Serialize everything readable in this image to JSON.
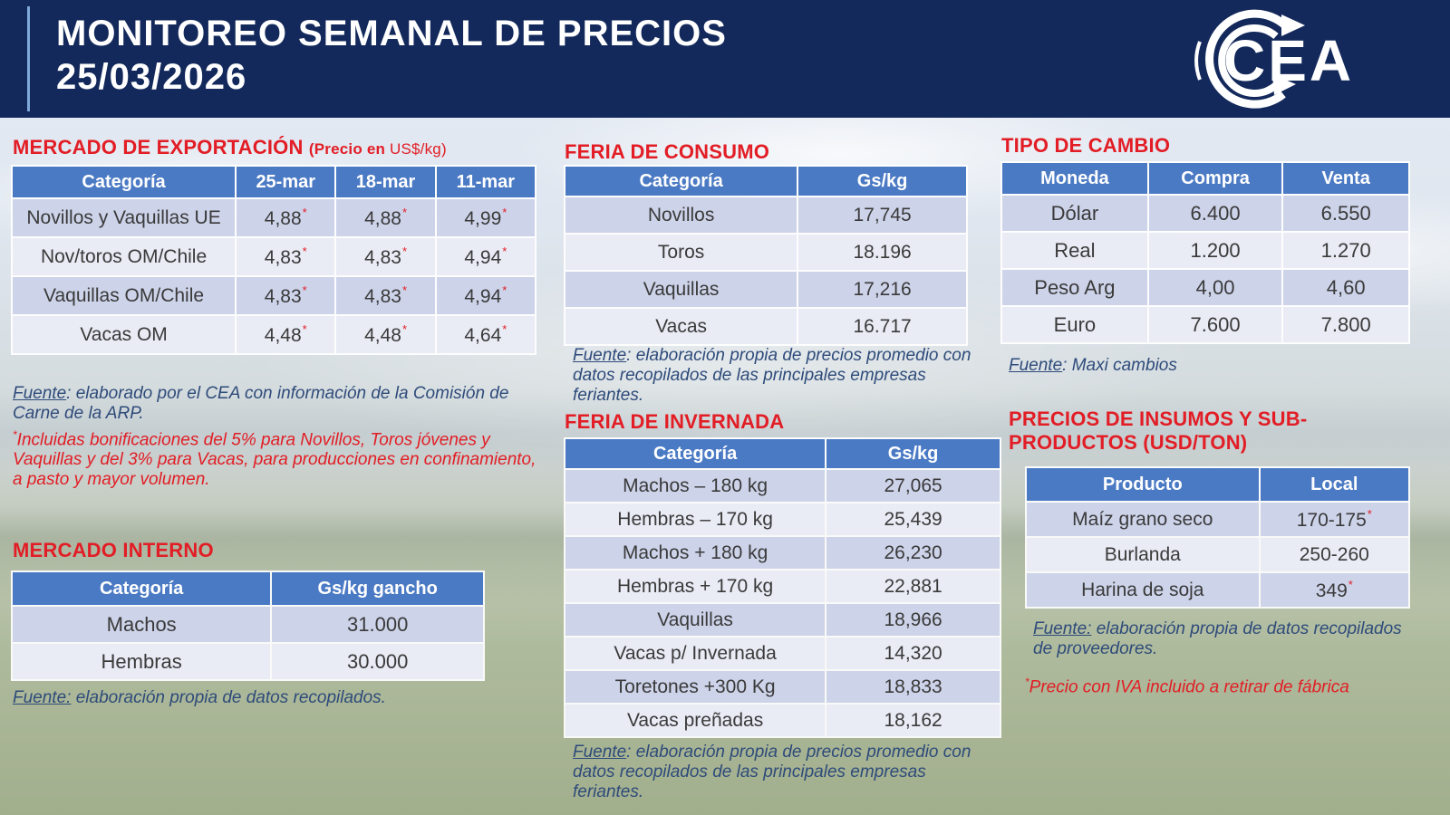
{
  "header": {
    "title": "MONITOREO SEMANAL DE PRECIOS",
    "date": "25/03/2026",
    "logo": "CEA"
  },
  "colors": {
    "banner_navy": "#13295B",
    "accent_light_blue": "#7FA9DB",
    "table_header_blue": "#4B7AC4",
    "row_dark": "#CDD3E9",
    "row_light": "#E9EBF5",
    "title_red": "#E21D25",
    "source_navy": "#2E4B7A"
  },
  "export": {
    "title": "MERCADO DE EXPORTACIÓN",
    "subtitle_strong": "(Precio en",
    "subtitle_rest": " US$/kg)",
    "table": {
      "columns": [
        "Categoría",
        "25-mar",
        "18-mar",
        "11-mar"
      ],
      "rows": [
        {
          "cells": [
            {
              "t": "Novillos y Vaquillas UE"
            },
            {
              "t": "4,88",
              "sup": "*"
            },
            {
              "t": "4,88",
              "sup": "*"
            },
            {
              "t": "4,99",
              "sup": "*"
            }
          ]
        },
        {
          "cells": [
            {
              "t": "Nov/toros OM/Chile"
            },
            {
              "t": "4,83",
              "sup": "*"
            },
            {
              "t": "4,83",
              "sup": "*"
            },
            {
              "t": "4,94",
              "sup": "*"
            }
          ]
        },
        {
          "cells": [
            {
              "t": "Vaquillas OM/Chile"
            },
            {
              "t": "4,83",
              "sup": "*"
            },
            {
              "t": "4,83",
              "sup": "*"
            },
            {
              "t": "4,94",
              "sup": "*"
            }
          ]
        },
        {
          "cells": [
            {
              "t": "Vacas OM"
            },
            {
              "t": "4,48",
              "sup": "*"
            },
            {
              "t": "4,48",
              "sup": "*"
            },
            {
              "t": "4,64",
              "sup": "*"
            }
          ]
        }
      ]
    },
    "fuente_label": "Fuente",
    "fuente_text": ": elaborado por el CEA con información de la Comisión de Carne de la ARP.",
    "note_sup": "*",
    "note_text": "Incluidas bonificaciones del 5% para Novillos, Toros jóvenes y Vaquillas y del 3% para Vacas, para producciones en confinamiento, a pasto y mayor volumen."
  },
  "interno": {
    "title": "MERCADO INTERNO",
    "table": {
      "columns": [
        "Categoría",
        "Gs/kg gancho"
      ],
      "rows": [
        {
          "cells": [
            {
              "t": "Machos"
            },
            {
              "t": "31.000"
            }
          ]
        },
        {
          "cells": [
            {
              "t": "Hembras"
            },
            {
              "t": "30.000"
            }
          ]
        }
      ]
    },
    "fuente_label": "Fuente:",
    "fuente_text": " elaboración propia de datos recopilados."
  },
  "consumo": {
    "title": "FERIA DE CONSUMO",
    "table": {
      "columns": [
        "Categoría",
        "Gs/kg"
      ],
      "rows": [
        {
          "cells": [
            {
              "t": "Novillos"
            },
            {
              "t": "17,745"
            }
          ]
        },
        {
          "cells": [
            {
              "t": "Toros"
            },
            {
              "t": "18.196"
            }
          ]
        },
        {
          "cells": [
            {
              "t": "Vaquillas"
            },
            {
              "t": "17,216"
            }
          ]
        },
        {
          "cells": [
            {
              "t": "Vacas"
            },
            {
              "t": "16.717"
            }
          ]
        }
      ]
    },
    "fuente_label": "Fuente",
    "fuente_text": ": elaboración propia de precios promedio con datos recopilados de las principales empresas feriantes."
  },
  "invernada": {
    "title": "FERIA DE INVERNADA",
    "table": {
      "columns": [
        "Categoría",
        "Gs/kg"
      ],
      "rows": [
        {
          "cells": [
            {
              "t": "Machos – 180 kg"
            },
            {
              "t": "27,065"
            }
          ]
        },
        {
          "cells": [
            {
              "t": "Hembras – 170 kg"
            },
            {
              "t": "25,439"
            }
          ]
        },
        {
          "cells": [
            {
              "t": "Machos + 180 kg"
            },
            {
              "t": "26,230"
            }
          ]
        },
        {
          "cells": [
            {
              "t": "Hembras + 170 kg"
            },
            {
              "t": "22,881"
            }
          ]
        },
        {
          "cells": [
            {
              "t": "Vaquillas"
            },
            {
              "t": "18,966"
            }
          ]
        },
        {
          "cells": [
            {
              "t": "Vacas p/ Invernada"
            },
            {
              "t": "14,320"
            }
          ]
        },
        {
          "cells": [
            {
              "t": "Toretones +300 Kg"
            },
            {
              "t": "18,833"
            }
          ]
        },
        {
          "cells": [
            {
              "t": "Vacas preñadas"
            },
            {
              "t": "18,162"
            }
          ]
        }
      ]
    },
    "fuente_label": "Fuente",
    "fuente_text": ": elaboración propia de precios promedio con datos recopilados de las principales empresas feriantes."
  },
  "cambio": {
    "title": "TIPO DE CAMBIO",
    "table": {
      "columns": [
        "Moneda",
        "Compra",
        "Venta"
      ],
      "rows": [
        {
          "cells": [
            {
              "t": "Dólar"
            },
            {
              "t": "6.400"
            },
            {
              "t": "6.550"
            }
          ]
        },
        {
          "cells": [
            {
              "t": "Real"
            },
            {
              "t": "1.200"
            },
            {
              "t": "1.270"
            }
          ]
        },
        {
          "cells": [
            {
              "t": "Peso Arg"
            },
            {
              "t": "4,00"
            },
            {
              "t": "4,60"
            }
          ]
        },
        {
          "cells": [
            {
              "t": "Euro"
            },
            {
              "t": "7.600"
            },
            {
              "t": "7.800"
            }
          ]
        }
      ]
    },
    "fuente_label": "Fuente",
    "fuente_text": ": Maxi cambios"
  },
  "insumos": {
    "title": "PRECIOS DE INSUMOS Y SUB-PRODUCTOS (USD/TON)",
    "table": {
      "columns": [
        "Producto",
        "Local"
      ],
      "rows": [
        {
          "cells": [
            {
              "t": "Maíz grano seco"
            },
            {
              "t": "170-175",
              "sup": "*"
            }
          ]
        },
        {
          "cells": [
            {
              "t": "Burlanda"
            },
            {
              "t": "250-260"
            }
          ]
        },
        {
          "cells": [
            {
              "t": "Harina de soja"
            },
            {
              "t": "349",
              "sup": "*"
            }
          ]
        }
      ]
    },
    "fuente_label": "Fuente:",
    "fuente_text": " elaboración propia de datos recopilados de proveedores.",
    "note_sup": "*",
    "note_text": "Precio con IVA incluido a retirar de fábrica"
  }
}
